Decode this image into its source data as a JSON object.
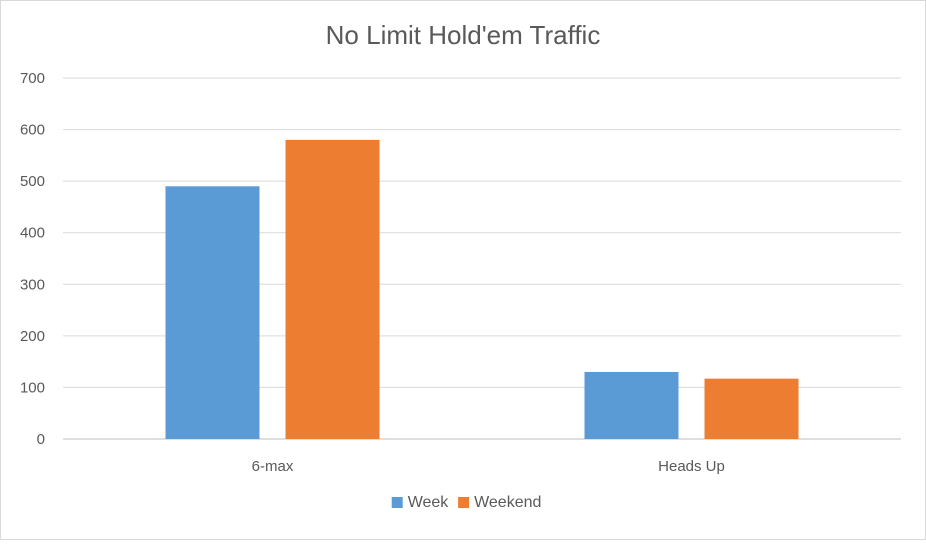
{
  "chart_data": {
    "type": "bar",
    "title": "No Limit Hold'em Traffic",
    "xlabel": "",
    "ylabel": "",
    "categories": [
      "6-max",
      "Heads Up"
    ],
    "series": [
      {
        "name": "Week",
        "values": [
          490,
          130
        ],
        "color": "#5b9bd5"
      },
      {
        "name": "Weekend",
        "values": [
          580,
          117
        ],
        "color": "#ed7d31"
      }
    ],
    "ylim": [
      0,
      700
    ],
    "yticks": [
      0,
      100,
      200,
      300,
      400,
      500,
      600,
      700
    ],
    "grid": true,
    "legend_position": "bottom"
  }
}
